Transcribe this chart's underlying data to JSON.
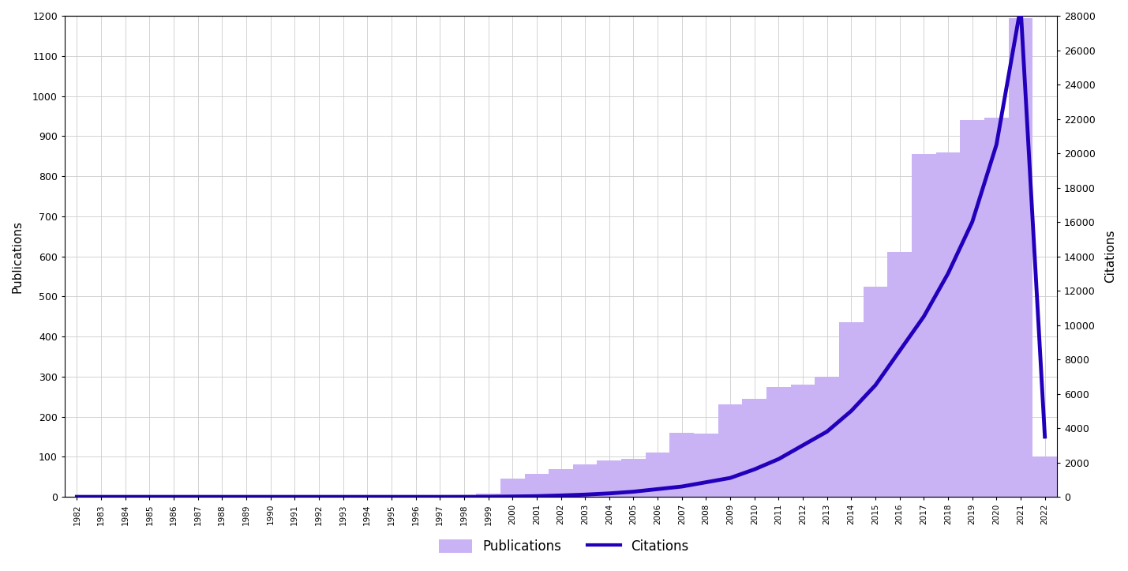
{
  "years": [
    1982,
    1983,
    1984,
    1985,
    1986,
    1987,
    1988,
    1989,
    1990,
    1991,
    1992,
    1993,
    1994,
    1995,
    1996,
    1997,
    1998,
    1999,
    2000,
    2001,
    2002,
    2003,
    2004,
    2005,
    2006,
    2007,
    2008,
    2009,
    2010,
    2011,
    2012,
    2013,
    2014,
    2015,
    2016,
    2017,
    2018,
    2019,
    2020,
    2021,
    2022
  ],
  "publications": [
    0,
    0,
    0,
    0,
    0,
    0,
    0,
    0,
    0,
    0,
    0,
    0,
    0,
    0,
    0,
    0,
    3,
    8,
    45,
    58,
    70,
    80,
    90,
    95,
    110,
    160,
    158,
    230,
    245,
    275,
    280,
    300,
    435,
    525,
    610,
    855,
    860,
    940,
    945,
    1195,
    100
  ],
  "citations": [
    0,
    0,
    0,
    0,
    0,
    0,
    0,
    0,
    0,
    0,
    0,
    0,
    0,
    0,
    0,
    0,
    2,
    5,
    20,
    40,
    80,
    130,
    200,
    300,
    450,
    600,
    850,
    1100,
    1600,
    2200,
    3000,
    3800,
    5000,
    6500,
    8500,
    10500,
    13000,
    16000,
    20500,
    28500,
    3500
  ],
  "bar_color": "#c9b3f5",
  "line_color": "#2200bb",
  "left_ylabel": "Publications",
  "right_ylabel": "Citations",
  "ylim_left": [
    0,
    1200
  ],
  "ylim_right": [
    0,
    28000
  ],
  "yticks_left": [
    0,
    100,
    200,
    300,
    400,
    500,
    600,
    700,
    800,
    900,
    1000,
    1100,
    1200
  ],
  "yticks_right": [
    0,
    2000,
    4000,
    6000,
    8000,
    10000,
    12000,
    14000,
    16000,
    18000,
    20000,
    22000,
    24000,
    26000,
    28000
  ],
  "legend_labels": [
    "Publications",
    "Citations"
  ],
  "background_color": "#ffffff",
  "grid_color": "#cccccc"
}
